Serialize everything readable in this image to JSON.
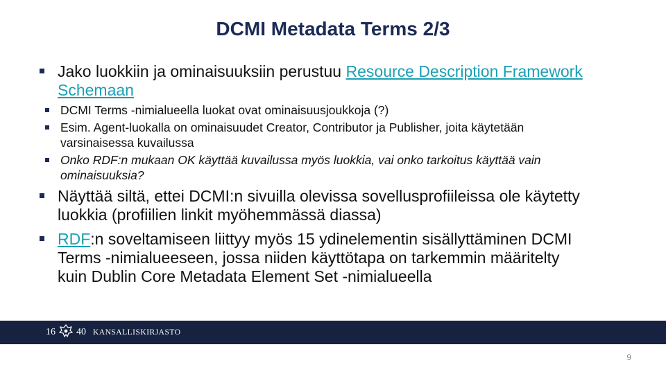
{
  "slide": {
    "title": "DCMI Metadata Terms 2/3",
    "page_number": "9"
  },
  "bullets": [
    {
      "text": "Jako luokkiin ja ominaisuuksiin perustuu ",
      "link": "Resource Description Framework Schemaan",
      "sub": [
        "DCMI Terms -nimialueella luokat ovat ominaisuusjoukkoja (?)",
        "Esim. Agent-luokalla on ominaisuudet Creator, Contributor ja Publisher, joita käytetään varsinaisessa kuvailussa",
        "Onko RDF:n mukaan OK käyttää kuvailussa myös luokkia, vai onko tarkoitus käyttää vain ominaisuuksia?"
      ]
    },
    {
      "text": "Näyttää siltä, ettei DCMI:n sivuilla olevissa sovellusprofiileissa ole käytetty luokkia (profiilien linkit myöhemmässä diassa)"
    },
    {
      "link": "RDF",
      "text": ":n soveltamiseen liittyy myös 15 ydinelementin sisällyttäminen DCMI Terms -nimialueeseen, jossa niiden käyttötapa on tarkemmin määritelty kuin Dublin Core Metadata Element Set -nimialueella"
    }
  ],
  "footer": {
    "logo_year_left": "16",
    "logo_year_right": "40",
    "logo_name": "KANSALLISKIRJASTO",
    "emblem_icon": "crest-icon",
    "band_color": "#16223f"
  },
  "colors": {
    "title": "#1b2a56",
    "link": "#1aa0b5",
    "bullet": "#1b2a56"
  }
}
